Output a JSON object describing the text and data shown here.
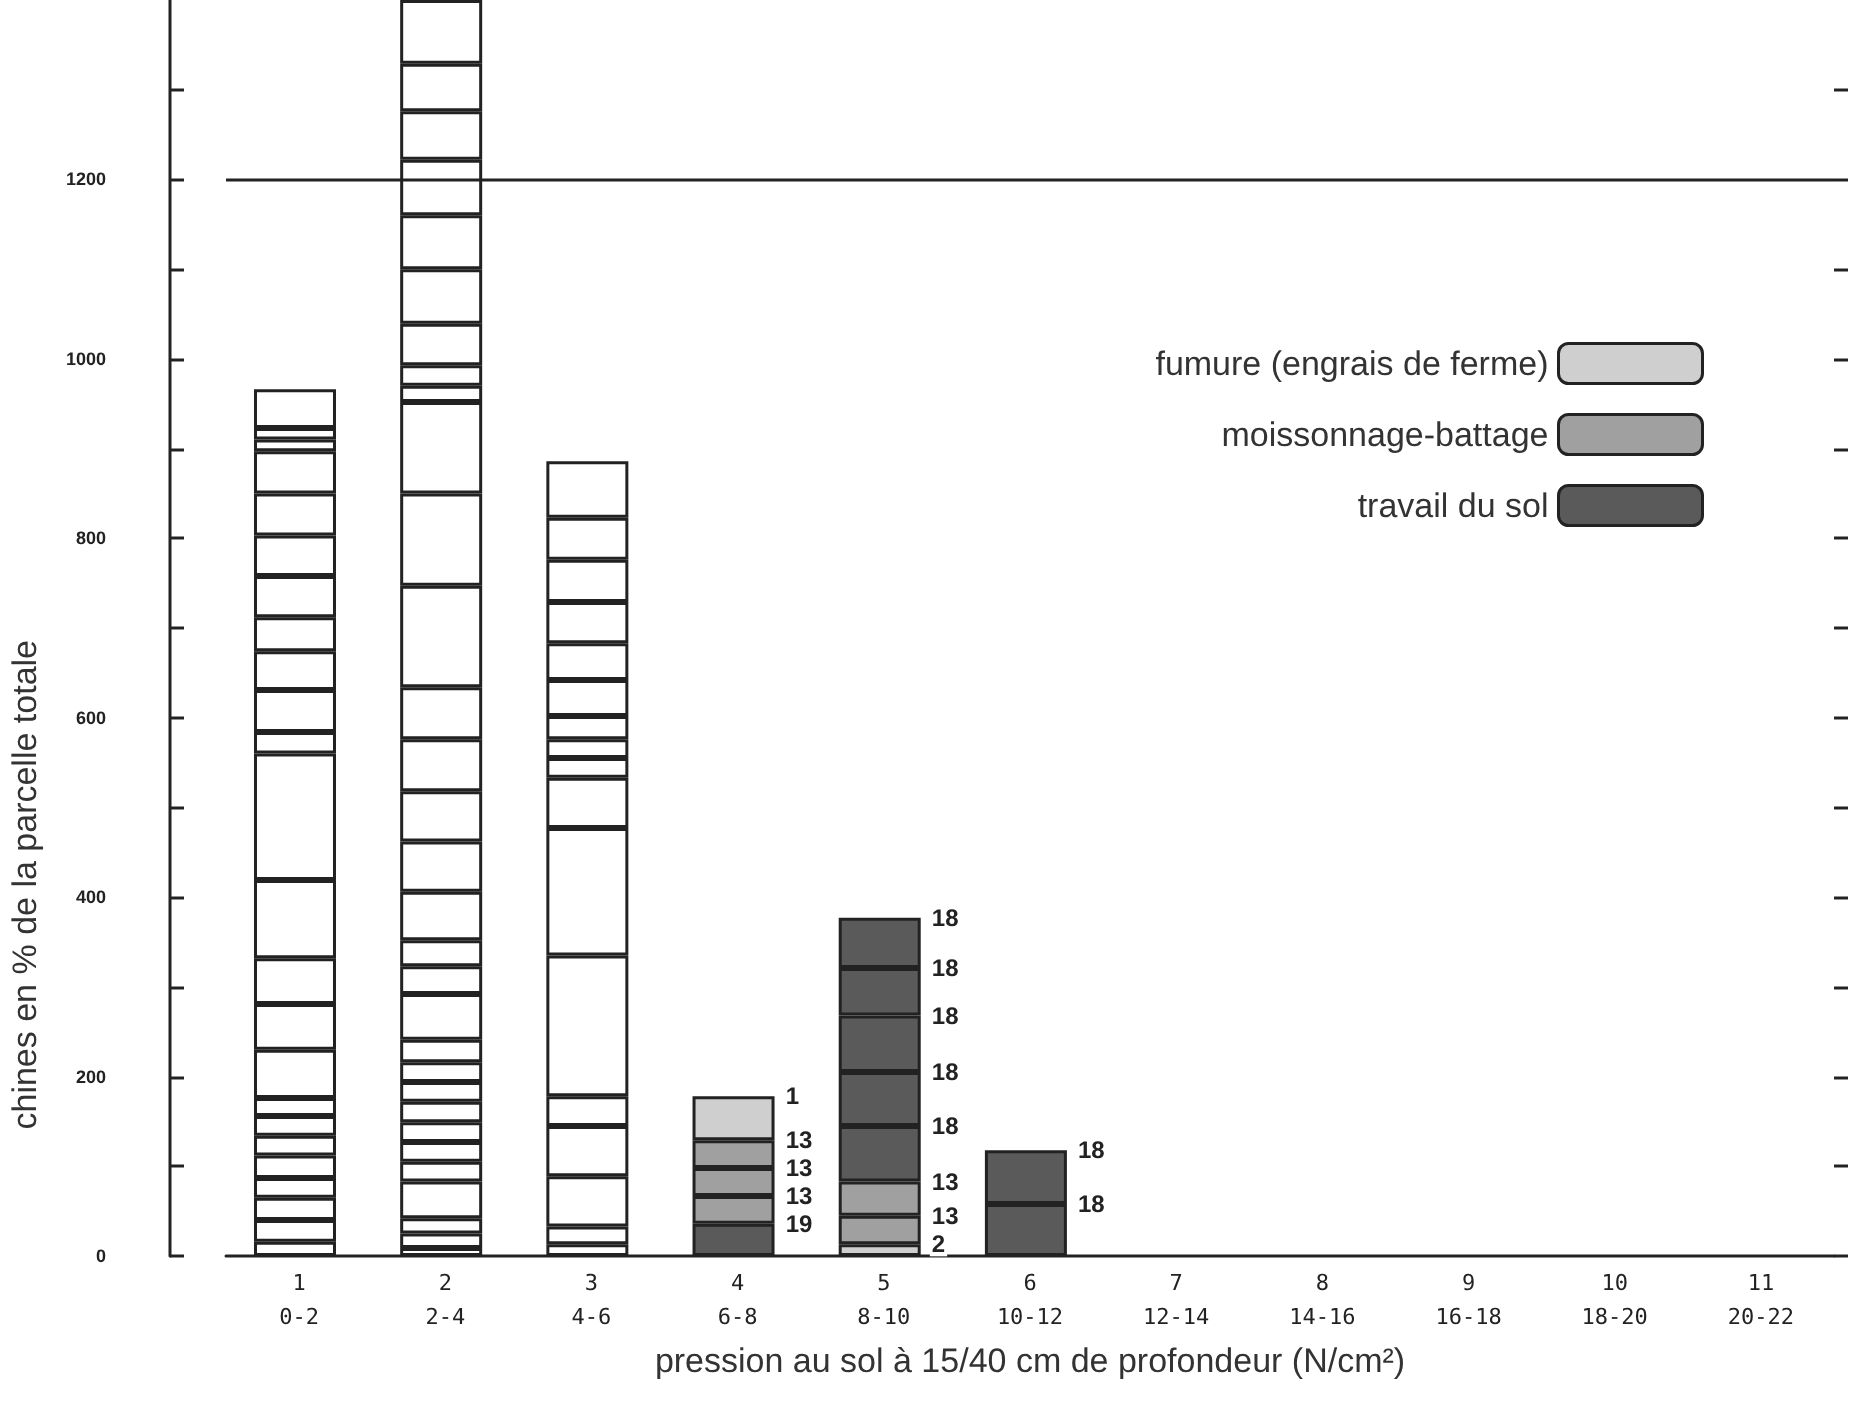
{
  "chart_data": {
    "type": "bar",
    "stacked": true,
    "xlabel": "pression au sol à 15/40 cm de profondeur (N/cm²)",
    "ylabel": "chines en % de la parcelle totale",
    "categories": [
      "1\n0-2",
      "2\n2-4",
      "3\n4-6",
      "4\n6-8",
      "5\n8-10",
      "6\n10-12",
      "7\n12-14",
      "8\n14-16",
      "9\n16-18",
      "10\n18-20",
      "11\n20-22"
    ],
    "ylim": [
      0,
      1400
    ],
    "yticks": [
      0,
      {
        "value": 100,
        "label": null
      },
      200,
      {
        "value": 300,
        "label": null
      },
      400,
      {
        "value": 500,
        "label": null
      },
      600,
      {
        "value": 700,
        "label": null
      },
      800,
      {
        "value": 900,
        "label": null
      },
      1000,
      {
        "value": 1100,
        "label": null
      },
      1200,
      {
        "value": 1300,
        "label": null
      }
    ],
    "grid": false,
    "legend": "top right",
    "ref_lines": [
      {
        "axis": "y",
        "value": 1200
      }
    ],
    "series": [
      {
        "color": "#ffffff",
        "values": [
          16,
          9,
          13,
          null,
          null,
          null,
          null,
          null,
          null,
          null,
          null
        ]
      },
      {
        "color": "#ffffff",
        "values": [
          24,
          16,
          20,
          null,
          null,
          null,
          null,
          null,
          null,
          null,
          null
        ]
      },
      {
        "color": "#ffffff",
        "values": [
          25,
          17,
          56,
          null,
          null,
          null,
          null,
          null,
          null,
          null,
          null
        ]
      },
      {
        "color": "#ffffff",
        "values": [
          22,
          41,
          56,
          null,
          null,
          null,
          null,
          null,
          null,
          null,
          null
        ]
      },
      {
        "color": "#ffffff",
        "values": [
          25,
          22,
          33,
          null,
          null,
          null,
          null,
          null,
          null,
          null,
          null
        ]
      },
      {
        "color": "#ffffff",
        "values": [
          22,
          22,
          157,
          null,
          null,
          null,
          null,
          null,
          null,
          null,
          null
        ]
      },
      {
        "color": "#ffffff",
        "values": [
          22,
          22,
          142,
          null,
          null,
          null,
          null,
          null,
          null,
          null,
          null
        ]
      },
      {
        "color": "#ffffff",
        "values": [
          20,
          23,
          56,
          null,
          null,
          null,
          null,
          null,
          null,
          null,
          null
        ]
      },
      {
        "color": "#ffffff",
        "values": [
          54,
          22,
          22,
          null,
          null,
          null,
          null,
          null,
          null,
          null,
          null
        ]
      },
      {
        "color": "#ffffff",
        "values": [
          51,
          22,
          21,
          null,
          null,
          null,
          null,
          null,
          null,
          null,
          null
        ]
      },
      {
        "color": "#ffffff",
        "values": [
          51,
          25,
          26,
          null,
          null,
          null,
          null,
          null,
          null,
          null,
          null
        ]
      },
      {
        "color": "#ffffff",
        "values": [
          87,
          51,
          40,
          null,
          null,
          null,
          null,
          null,
          null,
          null,
          null
        ]
      },
      {
        "color": "#ffffff",
        "values": [
          141,
          31,
          41,
          null,
          null,
          null,
          null,
          null,
          null,
          null,
          null
        ]
      },
      {
        "color": "#ffffff",
        "values": [
          24,
          29,
          46,
          null,
          null,
          null,
          null,
          null,
          null,
          null,
          null
        ]
      },
      {
        "color": "#ffffff",
        "values": [
          47,
          54,
          47,
          null,
          null,
          null,
          null,
          null,
          null,
          null,
          null
        ]
      },
      {
        "color": "#ffffff",
        "values": [
          43,
          56,
          47,
          null,
          null,
          null,
          null,
          null,
          null,
          null,
          null
        ]
      },
      {
        "color": "#ffffff",
        "values": [
          38,
          56,
          63,
          null,
          null,
          null,
          null,
          null,
          null,
          null,
          null
        ]
      },
      {
        "color": "#ffffff",
        "values": [
          46,
          58,
          null,
          null,
          null,
          null,
          null,
          null,
          null,
          null,
          null
        ]
      },
      {
        "color": "#ffffff",
        "values": [
          45,
          58,
          null,
          null,
          null,
          null,
          null,
          null,
          null,
          null,
          null
        ]
      },
      {
        "color": "#ffffff",
        "values": [
          47,
          113,
          null,
          null,
          null,
          null,
          null,
          null,
          null,
          null,
          null
        ]
      },
      {
        "color": "#ffffff",
        "values": [
          47,
          103,
          null,
          null,
          null,
          null,
          null,
          null,
          null,
          null,
          null
        ]
      },
      {
        "color": "#ffffff",
        "values": [
          13,
          102,
          null,
          null,
          null,
          null,
          null,
          null,
          null,
          null,
          null
        ]
      },
      {
        "color": "#ffffff",
        "values": [
          13,
          18,
          null,
          null,
          null,
          null,
          null,
          null,
          null,
          null,
          null
        ]
      },
      {
        "color": "#ffffff",
        "values": [
          43,
          23,
          null,
          null,
          null,
          null,
          null,
          null,
          null,
          null,
          null
        ]
      },
      {
        "color": "#ffffff",
        "values": [
          null,
          46,
          null,
          null,
          null,
          null,
          null,
          null,
          null,
          null,
          null
        ]
      },
      {
        "color": "#ffffff",
        "values": [
          null,
          61,
          null,
          null,
          null,
          null,
          null,
          null,
          null,
          null,
          null
        ]
      },
      {
        "color": "#ffffff",
        "values": [
          null,
          60,
          null,
          null,
          null,
          null,
          null,
          null,
          null,
          null,
          null
        ]
      },
      {
        "color": "#ffffff",
        "values": [
          null,
          62,
          null,
          null,
          null,
          null,
          null,
          null,
          null,
          null,
          null
        ]
      },
      {
        "color": "#ffffff",
        "values": [
          null,
          54,
          null,
          null,
          null,
          null,
          null,
          null,
          null,
          null,
          null
        ]
      },
      {
        "color": "#ffffff",
        "values": [
          null,
          53,
          null,
          null,
          null,
          null,
          null,
          null,
          null,
          null,
          null
        ]
      },
      {
        "color": "#ffffff",
        "values": [
          null,
          71,
          null,
          null,
          null,
          null,
          null,
          null,
          null,
          null,
          null
        ]
      },
      {
        "color": "#5a5a5a",
        "values": [
          null,
          null,
          null,
          36,
          null,
          58,
          null,
          null,
          null,
          null,
          null
        ]
      },
      {
        "name": "fumure (engrais de ferme)",
        "color": "#cfcfcf",
        "values": [
          null,
          null,
          null,
          null,
          13,
          null,
          null,
          null,
          null,
          null,
          null
        ]
      },
      {
        "name": "moissonnage-battage",
        "color": "#a0a0a0",
        "values": [
          null,
          null,
          null,
          31,
          32,
          null,
          null,
          null,
          null,
          null,
          null
        ]
      },
      {
        "color": "#a0a0a0",
        "values": [
          null,
          null,
          null,
          31,
          38,
          null,
          null,
          null,
          null,
          null,
          null
        ]
      },
      {
        "color": "#a0a0a0",
        "values": [
          null,
          null,
          null,
          31,
          null,
          null,
          null,
          null,
          null,
          null,
          null
        ]
      },
      {
        "color": "#cfcfcf",
        "values": [
          null,
          null,
          null,
          49,
          null,
          null,
          null,
          null,
          null,
          null,
          null
        ]
      },
      {
        "name": "travail du sol",
        "color": "#5a5a5a",
        "values": [
          null,
          null,
          null,
          null,
          62,
          60,
          null,
          null,
          null,
          null,
          null
        ]
      },
      {
        "color": "#5a5a5a",
        "values": [
          null,
          null,
          null,
          null,
          60,
          null,
          null,
          null,
          null,
          null,
          null
        ]
      },
      {
        "color": "#5a5a5a",
        "values": [
          null,
          null,
          null,
          null,
          63,
          null,
          null,
          null,
          null,
          null,
          null
        ]
      },
      {
        "color": "#5a5a5a",
        "values": [
          null,
          null,
          null,
          null,
          53,
          null,
          null,
          null,
          null,
          null,
          null
        ]
      },
      {
        "color": "#5a5a5a",
        "values": [
          null,
          null,
          null,
          null,
          56,
          null,
          null,
          null,
          null,
          null,
          null
        ]
      }
    ],
    "annotations": [
      {
        "text": "19",
        "x": "4\n6-8",
        "y": 36
      },
      {
        "text": "13",
        "x": "4\n6-8",
        "y": 67
      },
      {
        "text": "13",
        "x": "4\n6-8",
        "y": 98
      },
      {
        "text": "13",
        "x": "4\n6-8",
        "y": 129
      },
      {
        "text": "1",
        "x": "4\n6-8",
        "y": 178
      },
      {
        "text": "2",
        "x": "5\n8-10",
        "y": 13
      },
      {
        "text": "13",
        "x": "5\n8-10",
        "y": 45
      },
      {
        "text": "13",
        "x": "5\n8-10",
        "y": 83
      },
      {
        "text": "18",
        "x": "5\n8-10",
        "y": 145
      },
      {
        "text": "18",
        "x": "5\n8-10",
        "y": 205
      },
      {
        "text": "18",
        "x": "5\n8-10",
        "y": 268
      },
      {
        "text": "18",
        "x": "5\n8-10",
        "y": 321
      },
      {
        "text": "18",
        "x": "5\n8-10",
        "y": 377
      },
      {
        "text": "18",
        "x": "6\n10-12",
        "y": 58
      },
      {
        "text": "18",
        "x": "6\n10-12",
        "y": 118
      }
    ]
  }
}
